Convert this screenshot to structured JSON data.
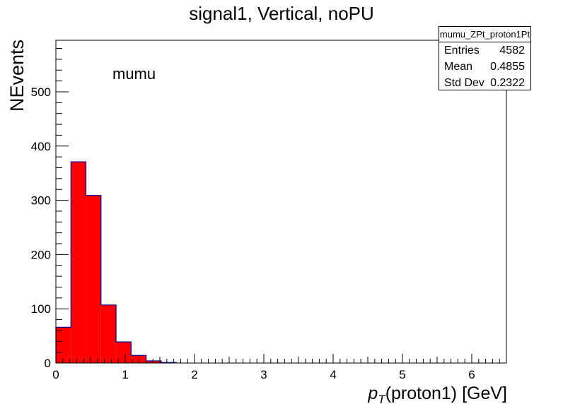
{
  "title": "signal1, Vertical, noPU",
  "annotation": "mumu",
  "stats_box": {
    "name": "mumu_ZPt_proton1Pt",
    "entries_label": "Entries",
    "entries_value": "4582",
    "mean_label": "Mean",
    "mean_value": "0.4855",
    "stddev_label": "Std Dev",
    "stddev_value": "0.2322"
  },
  "chart_data": {
    "type": "bar",
    "title": "signal1, Vertical, noPU",
    "xlabel_main": "p",
    "xlabel_sub": "T",
    "xlabel_rest": "(proton1)   [GeV]",
    "ylabel": "NEvents",
    "xlim": [
      0,
      6.5
    ],
    "ylim": [
      0,
      595
    ],
    "x_ticks": [
      "0",
      "1",
      "2",
      "3",
      "4",
      "5",
      "6"
    ],
    "y_ticks": [
      "0",
      "100",
      "200",
      "300",
      "400",
      "500"
    ],
    "bin_width": 0.217,
    "bin_edges_start": 0,
    "values": [
      66,
      371,
      309,
      107,
      39,
      14,
      4,
      1
    ],
    "fill_color": "#ff0000",
    "line_color": "#000099"
  }
}
